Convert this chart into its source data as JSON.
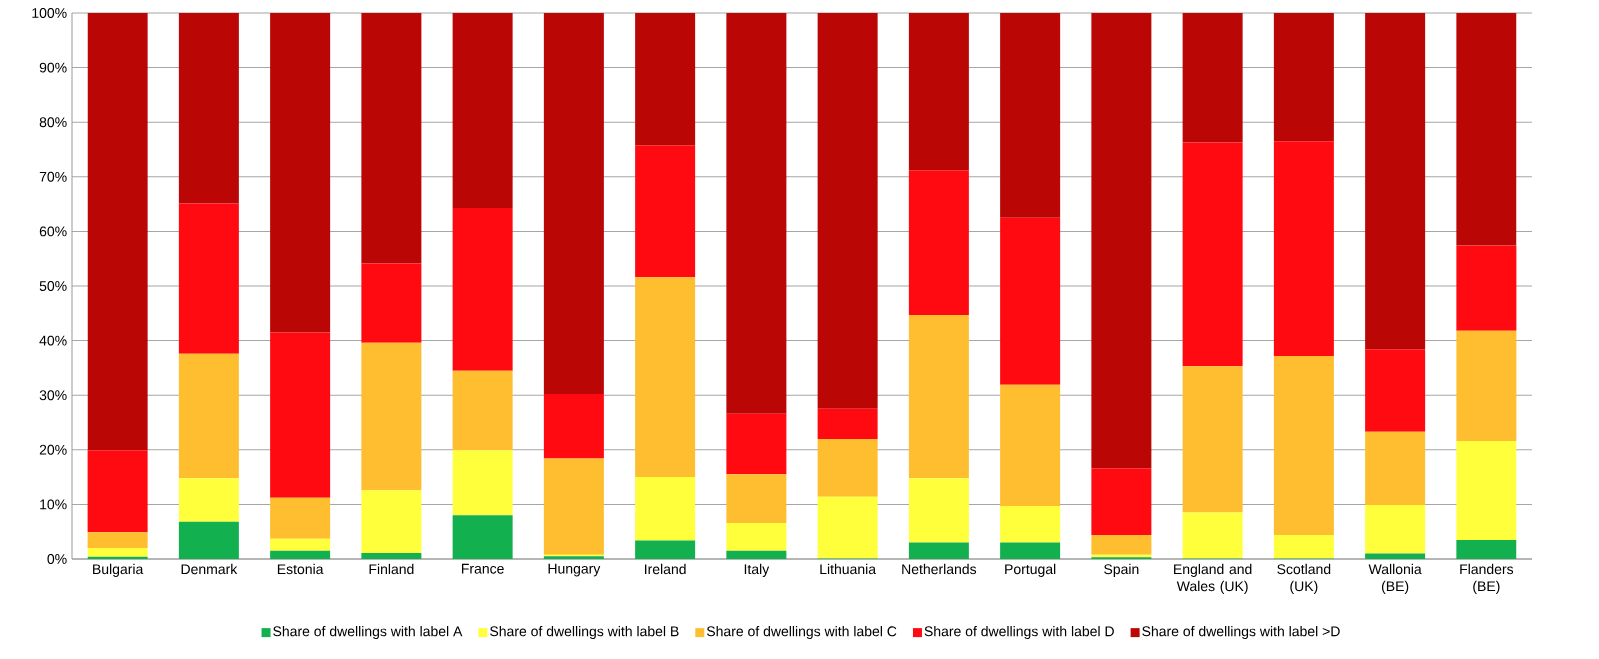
{
  "chart_data": {
    "type": "bar",
    "stacked": true,
    "grid": "y",
    "legend": "bottom",
    "categories": [
      "Bulgaria",
      "Denmark",
      "Estonia",
      "Finland",
      "France",
      "Hungary",
      "Ireland",
      "Italy",
      "Lithuania",
      "Netherlands",
      "Portugal",
      "Spain",
      "England and Wales (UK)",
      "Scotland (UK)",
      "Wallonia (BE)",
      "Flanders (BE)"
    ],
    "ylim": [
      0,
      100
    ],
    "yticks": [
      {
        "value": 0,
        "label": "0%"
      },
      {
        "value": 10,
        "label": "10%"
      },
      {
        "value": 20,
        "label": "20%"
      },
      {
        "value": 30,
        "label": "30%"
      },
      {
        "value": 40,
        "label": "40%"
      },
      {
        "value": 50,
        "label": "50%"
      },
      {
        "value": 60,
        "label": "60%"
      },
      {
        "value": 70,
        "label": "70%"
      },
      {
        "value": 80,
        "label": "80%"
      },
      {
        "value": 90,
        "label": "90%"
      },
      {
        "value": 100,
        "label": "100%"
      }
    ],
    "series": [
      {
        "name": "Share of dwellings with label A",
        "color": "#12b04f",
        "values": [
          0.4,
          6.8,
          1.5,
          1.1,
          8.0,
          0.5,
          3.4,
          1.5,
          0.1,
          3.0,
          3.0,
          0.3,
          0.1,
          0.1,
          1.0,
          3.5
        ]
      },
      {
        "name": "Share of dwellings with label B",
        "color": "#ffff3b",
        "values": [
          1.6,
          8.0,
          2.2,
          11.5,
          11.9,
          0.3,
          11.6,
          5.1,
          11.3,
          11.8,
          6.7,
          0.5,
          8.4,
          4.3,
          8.9,
          18.1
        ]
      },
      {
        "name": "Share of dwellings with label C",
        "color": "#febe2f",
        "values": [
          2.9,
          22.8,
          7.5,
          27.0,
          14.6,
          17.6,
          36.6,
          8.9,
          10.6,
          29.9,
          22.2,
          3.6,
          26.8,
          32.8,
          13.4,
          20.2
        ]
      },
      {
        "name": "Share of dwellings with label D",
        "color": "#ff0a10",
        "values": [
          15.0,
          27.5,
          30.3,
          14.5,
          29.8,
          11.8,
          24.2,
          11.1,
          5.5,
          26.5,
          30.6,
          12.2,
          41.0,
          39.3,
          15.1,
          15.6
        ]
      },
      {
        "name": "Share of dwellings with label >D",
        "color": "#bb0606",
        "values": [
          80.1,
          34.9,
          58.5,
          45.9,
          35.7,
          69.8,
          24.2,
          73.4,
          72.5,
          28.8,
          37.5,
          83.4,
          23.7,
          23.5,
          61.6,
          42.6
        ]
      }
    ]
  }
}
